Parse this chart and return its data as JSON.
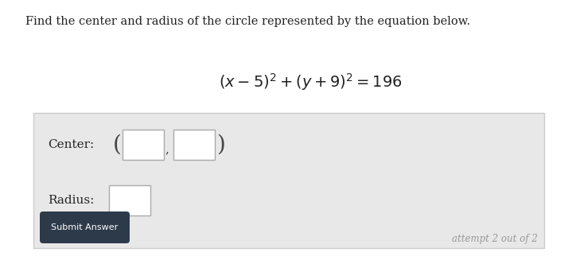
{
  "title_text": "Find the center and radius of the circle represented by the equation below.",
  "center_label": "Center:",
  "radius_label": "Radius:",
  "submit_text": "Submit Answer",
  "attempt_text": "attempt 2 out of 2",
  "bg_color": "#ffffff",
  "box_bg_color": "#e8e8e8",
  "title_fontsize": 10.5,
  "equation_fontsize": 14,
  "label_fontsize": 11,
  "submit_bg": "#2d3a4a",
  "submit_text_color": "#ffffff",
  "attempt_color": "#999999",
  "input_box_color": "#ffffff",
  "input_box_edge": "#aaaaaa",
  "outer_border_color": "#cccccc"
}
